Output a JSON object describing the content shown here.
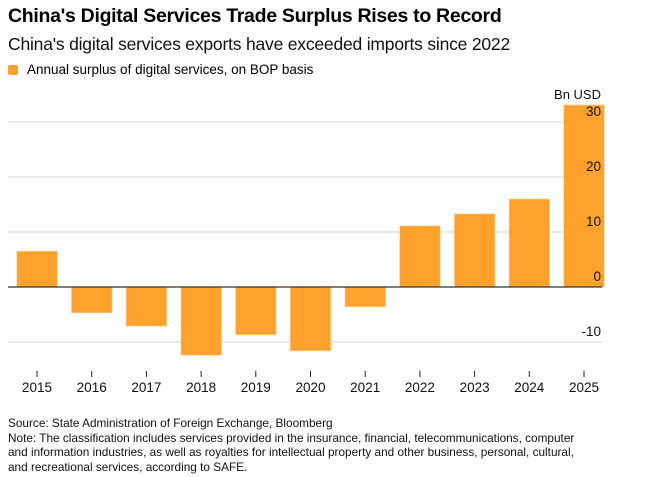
{
  "header": {
    "title": "China's Digital Services Trade Surplus Rises to Record",
    "subtitle": "China's digital services exports have exceeded imports since 2022"
  },
  "colors": {
    "bar": "#ffa22c",
    "grid": "#dddddd",
    "zero_line": "#333333"
  },
  "chart_data": {
    "type": "bar",
    "title": "China's Digital Services Trade Surplus Rises to Record",
    "subtitle": "China's digital services exports have exceeded imports since 2022",
    "legend": [
      {
        "name": "Annual surplus of digital services, on BOP basis",
        "color": "#ffa22c"
      }
    ],
    "legend_position": "top-left",
    "categories": [
      "2015",
      "2016",
      "2017",
      "2018",
      "2019",
      "2020",
      "2021",
      "2022",
      "2023",
      "2024",
      "2025"
    ],
    "series": [
      {
        "name": "Annual surplus of digital services, on BOP basis",
        "values": [
          6.5,
          -4.7,
          -7.1,
          -12.4,
          -8.7,
          -11.6,
          -3.6,
          11.1,
          13.3,
          16.0,
          33.1
        ]
      }
    ],
    "xlabel": "",
    "ylabel": "Bn USD",
    "yaxis_position": "right",
    "yticks": [
      -10,
      0,
      10,
      20,
      30
    ],
    "ytick_labels": [
      "-10",
      "0",
      "10",
      "20",
      "30"
    ],
    "ylim": [
      -14,
      35
    ],
    "grid": true
  },
  "footer": {
    "source": "Source: State Administration of Foreign Exchange, Bloomberg",
    "note_lines": [
      "Note: The classification includes services provided in the insurance, financial, telecommunications, computer",
      "and information industries, as well as royalties for intellectual property and other business, personal, cultural,",
      "and recreational services, according to SAFE."
    ]
  }
}
